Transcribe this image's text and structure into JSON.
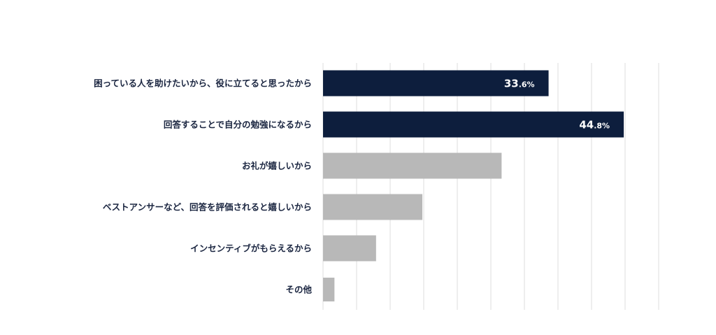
{
  "chart_data": {
    "type": "bar",
    "orientation": "horizontal",
    "categories": [
      "困っている人を助けたいから、役に立てると思ったから",
      "回答することで自分の勉強になるから",
      "お礼が嬉しいから",
      "ベストアンサーなど、回答を評価されると嬉しいから",
      "インセンティブがもらえるから",
      "その他"
    ],
    "values": [
      33.6,
      44.8,
      26.6,
      14.8,
      7.9,
      1.7
    ],
    "value_labels": [
      {
        "index": 0,
        "major": "33",
        "minor": ".6%"
      },
      {
        "index": 1,
        "major": "44",
        "minor": ".8%"
      }
    ],
    "highlighted": [
      0,
      1
    ],
    "xlim": [
      0,
      50
    ],
    "grid": true,
    "colors": {
      "highlight": "#0d1e3d",
      "normal": "#b8b8b8",
      "grid": "#dddddd",
      "label": "#1a2540"
    }
  }
}
